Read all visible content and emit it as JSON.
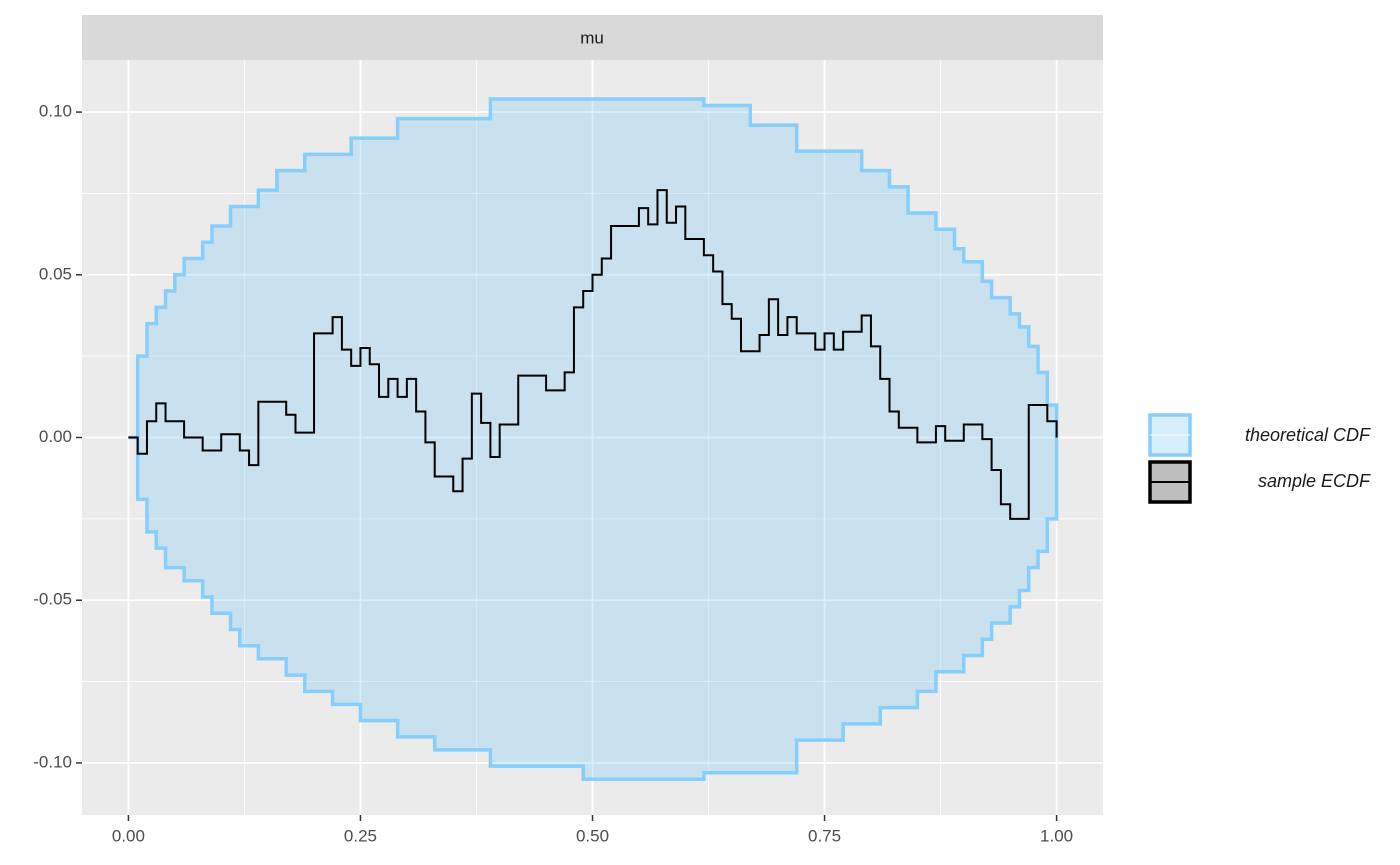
{
  "chart_data": {
    "type": "ecdf-band",
    "strip": "mu",
    "xlim": [
      -0.05,
      1.05
    ],
    "ylim": [
      -0.116,
      0.116
    ],
    "xticks": [
      {
        "value": 0,
        "label": "0.00"
      },
      {
        "value": 0.25,
        "label": "0.25"
      },
      {
        "value": 0.5,
        "label": "0.50"
      },
      {
        "value": 0.75,
        "label": "0.75"
      },
      {
        "value": 1,
        "label": "1.00"
      }
    ],
    "yticks": [
      {
        "value": -0.1,
        "label": "-0.10"
      },
      {
        "value": -0.05,
        "label": "-0.05"
      },
      {
        "value": 0,
        "label": "0.00"
      },
      {
        "value": 0.05,
        "label": "0.05"
      },
      {
        "value": 0.1,
        "label": "0.10"
      }
    ],
    "xminor": [
      0.125,
      0.375,
      0.625,
      0.875
    ],
    "yminor": [
      -0.075,
      -0.025,
      0.025,
      0.075
    ],
    "grid": true,
    "legend": "right",
    "series": [
      {
        "name": "theoretical CDF",
        "color": "#87cefa",
        "x_upper": [
          0,
          0.01,
          0.02,
          0.03,
          0.04,
          0.05,
          0.06,
          0.08,
          0.09,
          0.11,
          0.14,
          0.16,
          0.19,
          0.24,
          0.29,
          0.39,
          0.62,
          0.67,
          0.72,
          0.79,
          0.82,
          0.84,
          0.87,
          0.89,
          0.9,
          0.92,
          0.93,
          0.95,
          0.96,
          0.97,
          0.98,
          0.99,
          1.0
        ],
        "upper": [
          0,
          0.025,
          0.035,
          0.04,
          0.045,
          0.05,
          0.055,
          0.06,
          0.065,
          0.071,
          0.076,
          0.082,
          0.087,
          0.092,
          0.098,
          0.104,
          0.102,
          0.096,
          0.088,
          0.082,
          0.077,
          0.069,
          0.064,
          0.058,
          0.054,
          0.048,
          0.043,
          0.038,
          0.034,
          0.028,
          0.02,
          0.01,
          0.01
        ],
        "x_lower": [
          0,
          0.01,
          0.02,
          0.03,
          0.04,
          0.06,
          0.08,
          0.09,
          0.11,
          0.12,
          0.14,
          0.17,
          0.19,
          0.22,
          0.25,
          0.29,
          0.33,
          0.39,
          0.49,
          0.62,
          0.72,
          0.77,
          0.81,
          0.85,
          0.87,
          0.9,
          0.92,
          0.93,
          0.95,
          0.96,
          0.97,
          0.98,
          0.99,
          1.0
        ],
        "lower": [
          0,
          -0.019,
          -0.029,
          -0.034,
          -0.04,
          -0.044,
          -0.049,
          -0.054,
          -0.059,
          -0.064,
          -0.068,
          -0.073,
          -0.078,
          -0.082,
          -0.087,
          -0.092,
          -0.096,
          -0.101,
          -0.105,
          -0.103,
          -0.093,
          -0.088,
          -0.083,
          -0.078,
          -0.072,
          -0.067,
          -0.062,
          -0.057,
          -0.052,
          -0.047,
          -0.04,
          -0.035,
          -0.025,
          -0.025
        ]
      },
      {
        "name": "sample ECDF",
        "color": "#000000",
        "x": [
          0,
          0.01,
          0.02,
          0.03,
          0.04,
          0.06,
          0.08,
          0.1,
          0.12,
          0.13,
          0.14,
          0.17,
          0.18,
          0.2,
          0.22,
          0.23,
          0.24,
          0.25,
          0.26,
          0.27,
          0.28,
          0.29,
          0.3,
          0.31,
          0.32,
          0.33,
          0.35,
          0.36,
          0.37,
          0.38,
          0.39,
          0.4,
          0.42,
          0.45,
          0.47,
          0.48,
          0.49,
          0.5,
          0.51,
          0.52,
          0.55,
          0.56,
          0.57,
          0.58,
          0.59,
          0.6,
          0.62,
          0.63,
          0.64,
          0.65,
          0.66,
          0.68,
          0.69,
          0.7,
          0.71,
          0.72,
          0.74,
          0.75,
          0.76,
          0.77,
          0.79,
          0.8,
          0.81,
          0.82,
          0.83,
          0.85,
          0.87,
          0.88,
          0.9,
          0.92,
          0.93,
          0.94,
          0.95,
          0.97,
          0.99,
          1.0
        ],
        "values": [
          0,
          -0.005,
          0.005,
          0.0105,
          0.005,
          0,
          -0.004,
          0.001,
          -0.004,
          -0.0085,
          0.011,
          0.007,
          0.0015,
          0.032,
          0.037,
          0.027,
          0.022,
          0.0275,
          0.0225,
          0.0125,
          0.018,
          0.0125,
          0.018,
          0.008,
          -0.0015,
          -0.012,
          -0.0165,
          -0.0065,
          0.0135,
          0.0045,
          -0.006,
          0.004,
          0.019,
          0.0145,
          0.02,
          0.04,
          0.045,
          0.05,
          0.055,
          0.065,
          0.0705,
          0.0655,
          0.076,
          0.066,
          0.071,
          0.061,
          0.056,
          0.051,
          0.041,
          0.0365,
          0.0265,
          0.0315,
          0.0425,
          0.0315,
          0.037,
          0.032,
          0.027,
          0.032,
          0.027,
          0.0325,
          0.0375,
          0.028,
          0.018,
          0.008,
          0.003,
          -0.0015,
          0.0035,
          -0.001,
          0.004,
          -0.0005,
          -0.01,
          -0.0205,
          -0.025,
          0.01,
          0.005,
          0
        ]
      }
    ]
  }
}
